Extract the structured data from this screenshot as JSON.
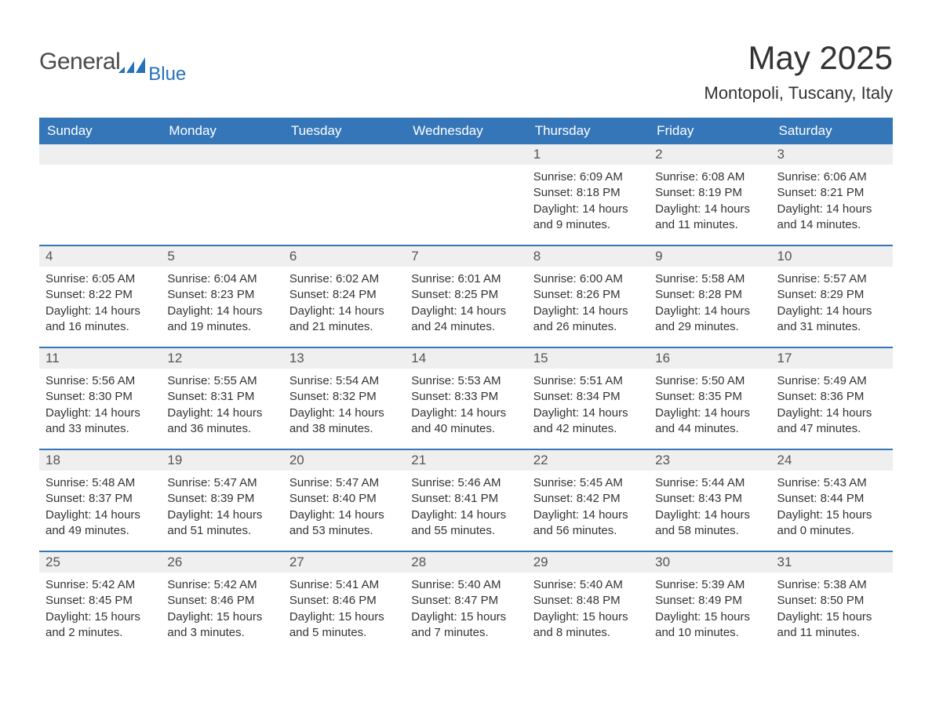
{
  "logo": {
    "word1": "General",
    "word2": "Blue"
  },
  "title": "May 2025",
  "subtitle": "Montopoli, Tuscany, Italy",
  "colors": {
    "header_bg": "#3576b9",
    "header_text": "#ffffff",
    "daynum_bg": "#efefef",
    "border": "#3576b9",
    "logo_gray": "#4a4a4a",
    "logo_blue": "#2671b8"
  },
  "day_names": [
    "Sunday",
    "Monday",
    "Tuesday",
    "Wednesday",
    "Thursday",
    "Friday",
    "Saturday"
  ],
  "weeks": [
    [
      {
        "n": "",
        "sunrise": "",
        "sunset": "",
        "daylight": ""
      },
      {
        "n": "",
        "sunrise": "",
        "sunset": "",
        "daylight": ""
      },
      {
        "n": "",
        "sunrise": "",
        "sunset": "",
        "daylight": ""
      },
      {
        "n": "",
        "sunrise": "",
        "sunset": "",
        "daylight": ""
      },
      {
        "n": "1",
        "sunrise": "Sunrise: 6:09 AM",
        "sunset": "Sunset: 8:18 PM",
        "daylight": "Daylight: 14 hours and 9 minutes."
      },
      {
        "n": "2",
        "sunrise": "Sunrise: 6:08 AM",
        "sunset": "Sunset: 8:19 PM",
        "daylight": "Daylight: 14 hours and 11 minutes."
      },
      {
        "n": "3",
        "sunrise": "Sunrise: 6:06 AM",
        "sunset": "Sunset: 8:21 PM",
        "daylight": "Daylight: 14 hours and 14 minutes."
      }
    ],
    [
      {
        "n": "4",
        "sunrise": "Sunrise: 6:05 AM",
        "sunset": "Sunset: 8:22 PM",
        "daylight": "Daylight: 14 hours and 16 minutes."
      },
      {
        "n": "5",
        "sunrise": "Sunrise: 6:04 AM",
        "sunset": "Sunset: 8:23 PM",
        "daylight": "Daylight: 14 hours and 19 minutes."
      },
      {
        "n": "6",
        "sunrise": "Sunrise: 6:02 AM",
        "sunset": "Sunset: 8:24 PM",
        "daylight": "Daylight: 14 hours and 21 minutes."
      },
      {
        "n": "7",
        "sunrise": "Sunrise: 6:01 AM",
        "sunset": "Sunset: 8:25 PM",
        "daylight": "Daylight: 14 hours and 24 minutes."
      },
      {
        "n": "8",
        "sunrise": "Sunrise: 6:00 AM",
        "sunset": "Sunset: 8:26 PM",
        "daylight": "Daylight: 14 hours and 26 minutes."
      },
      {
        "n": "9",
        "sunrise": "Sunrise: 5:58 AM",
        "sunset": "Sunset: 8:28 PM",
        "daylight": "Daylight: 14 hours and 29 minutes."
      },
      {
        "n": "10",
        "sunrise": "Sunrise: 5:57 AM",
        "sunset": "Sunset: 8:29 PM",
        "daylight": "Daylight: 14 hours and 31 minutes."
      }
    ],
    [
      {
        "n": "11",
        "sunrise": "Sunrise: 5:56 AM",
        "sunset": "Sunset: 8:30 PM",
        "daylight": "Daylight: 14 hours and 33 minutes."
      },
      {
        "n": "12",
        "sunrise": "Sunrise: 5:55 AM",
        "sunset": "Sunset: 8:31 PM",
        "daylight": "Daylight: 14 hours and 36 minutes."
      },
      {
        "n": "13",
        "sunrise": "Sunrise: 5:54 AM",
        "sunset": "Sunset: 8:32 PM",
        "daylight": "Daylight: 14 hours and 38 minutes."
      },
      {
        "n": "14",
        "sunrise": "Sunrise: 5:53 AM",
        "sunset": "Sunset: 8:33 PM",
        "daylight": "Daylight: 14 hours and 40 minutes."
      },
      {
        "n": "15",
        "sunrise": "Sunrise: 5:51 AM",
        "sunset": "Sunset: 8:34 PM",
        "daylight": "Daylight: 14 hours and 42 minutes."
      },
      {
        "n": "16",
        "sunrise": "Sunrise: 5:50 AM",
        "sunset": "Sunset: 8:35 PM",
        "daylight": "Daylight: 14 hours and 44 minutes."
      },
      {
        "n": "17",
        "sunrise": "Sunrise: 5:49 AM",
        "sunset": "Sunset: 8:36 PM",
        "daylight": "Daylight: 14 hours and 47 minutes."
      }
    ],
    [
      {
        "n": "18",
        "sunrise": "Sunrise: 5:48 AM",
        "sunset": "Sunset: 8:37 PM",
        "daylight": "Daylight: 14 hours and 49 minutes."
      },
      {
        "n": "19",
        "sunrise": "Sunrise: 5:47 AM",
        "sunset": "Sunset: 8:39 PM",
        "daylight": "Daylight: 14 hours and 51 minutes."
      },
      {
        "n": "20",
        "sunrise": "Sunrise: 5:47 AM",
        "sunset": "Sunset: 8:40 PM",
        "daylight": "Daylight: 14 hours and 53 minutes."
      },
      {
        "n": "21",
        "sunrise": "Sunrise: 5:46 AM",
        "sunset": "Sunset: 8:41 PM",
        "daylight": "Daylight: 14 hours and 55 minutes."
      },
      {
        "n": "22",
        "sunrise": "Sunrise: 5:45 AM",
        "sunset": "Sunset: 8:42 PM",
        "daylight": "Daylight: 14 hours and 56 minutes."
      },
      {
        "n": "23",
        "sunrise": "Sunrise: 5:44 AM",
        "sunset": "Sunset: 8:43 PM",
        "daylight": "Daylight: 14 hours and 58 minutes."
      },
      {
        "n": "24",
        "sunrise": "Sunrise: 5:43 AM",
        "sunset": "Sunset: 8:44 PM",
        "daylight": "Daylight: 15 hours and 0 minutes."
      }
    ],
    [
      {
        "n": "25",
        "sunrise": "Sunrise: 5:42 AM",
        "sunset": "Sunset: 8:45 PM",
        "daylight": "Daylight: 15 hours and 2 minutes."
      },
      {
        "n": "26",
        "sunrise": "Sunrise: 5:42 AM",
        "sunset": "Sunset: 8:46 PM",
        "daylight": "Daylight: 15 hours and 3 minutes."
      },
      {
        "n": "27",
        "sunrise": "Sunrise: 5:41 AM",
        "sunset": "Sunset: 8:46 PM",
        "daylight": "Daylight: 15 hours and 5 minutes."
      },
      {
        "n": "28",
        "sunrise": "Sunrise: 5:40 AM",
        "sunset": "Sunset: 8:47 PM",
        "daylight": "Daylight: 15 hours and 7 minutes."
      },
      {
        "n": "29",
        "sunrise": "Sunrise: 5:40 AM",
        "sunset": "Sunset: 8:48 PM",
        "daylight": "Daylight: 15 hours and 8 minutes."
      },
      {
        "n": "30",
        "sunrise": "Sunrise: 5:39 AM",
        "sunset": "Sunset: 8:49 PM",
        "daylight": "Daylight: 15 hours and 10 minutes."
      },
      {
        "n": "31",
        "sunrise": "Sunrise: 5:38 AM",
        "sunset": "Sunset: 8:50 PM",
        "daylight": "Daylight: 15 hours and 11 minutes."
      }
    ]
  ]
}
